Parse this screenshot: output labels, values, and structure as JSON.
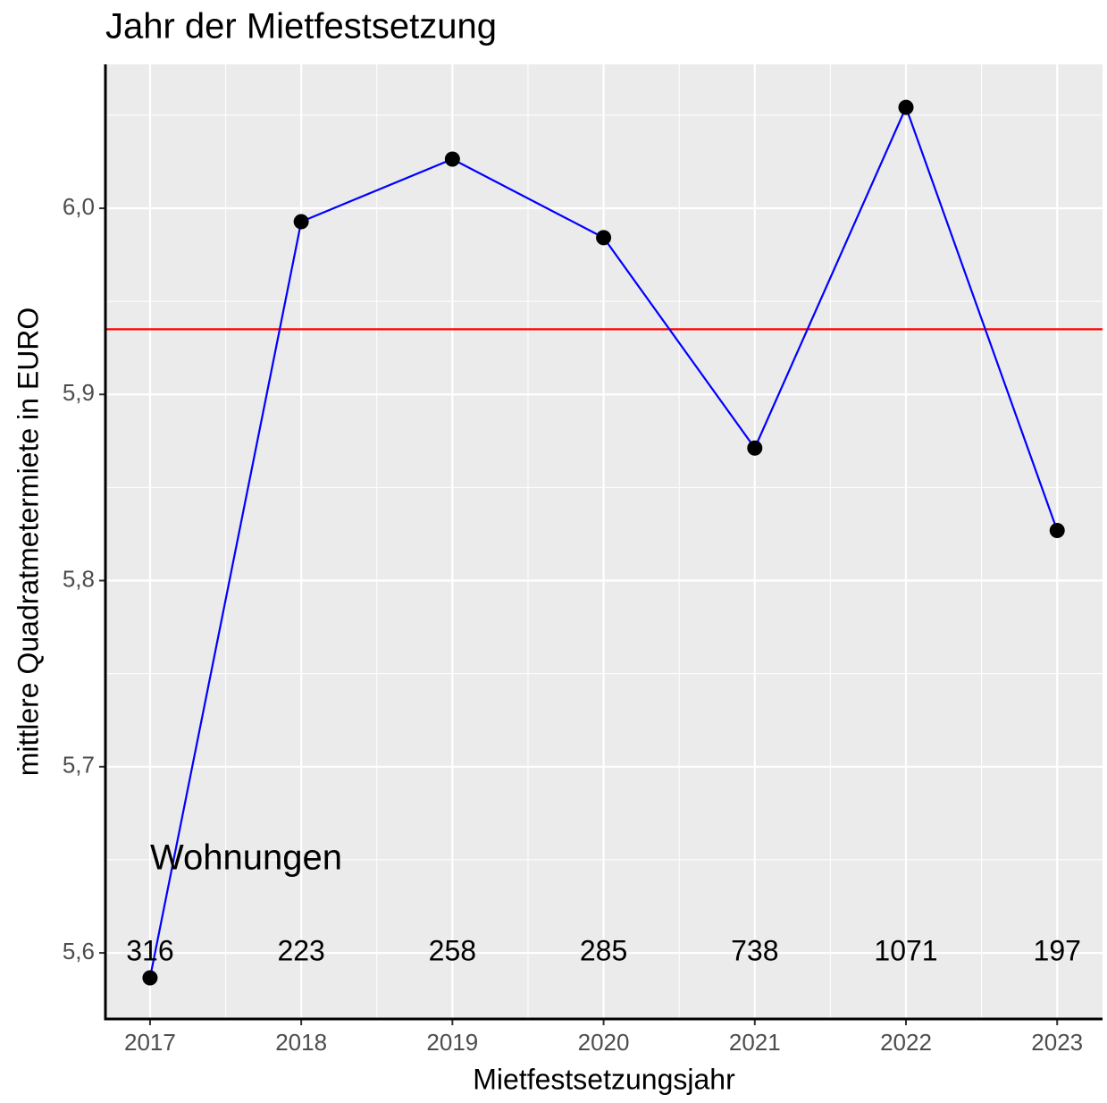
{
  "chart_data": {
    "type": "line",
    "title": "Jahr der Mietfestsetzung",
    "x_label": "Mietfestsetzungsjahr",
    "y_label": "mittlere Quadratmetermiete in EURO",
    "x": [
      2017,
      2018,
      2019,
      2020,
      2021,
      2022,
      2023
    ],
    "series": [
      {
        "color": "#0000ff",
        "point_color": "#000000",
        "values": [
          5.5866,
          5.9928,
          6.0264,
          5.9842,
          5.8712,
          6.0542,
          5.8269
        ]
      }
    ],
    "reference_line": {
      "value": 5.935,
      "color": "#ff0000"
    },
    "annotation": "Wohnungen",
    "counts": [
      316,
      223,
      258,
      285,
      738,
      1071,
      197
    ],
    "xlim": [
      2016.705,
      2023.3
    ],
    "xticks": [
      2017,
      2018,
      2019,
      2020,
      2021,
      2022,
      2023
    ],
    "ylim": [
      5.5645,
      6.0773
    ],
    "yticks": [
      {
        "value": 5.6,
        "label": "5,6"
      },
      {
        "value": 5.7,
        "label": "5,7"
      },
      {
        "value": 5.8,
        "label": "5,8"
      },
      {
        "value": 5.9,
        "label": "5,9"
      },
      {
        "value": 6.0,
        "label": "6,0"
      }
    ],
    "grid": true
  }
}
